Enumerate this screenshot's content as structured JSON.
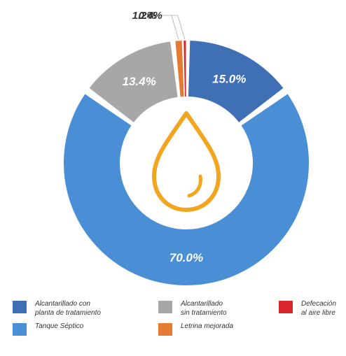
{
  "chart_data": {
    "type": "pie",
    "donut": true,
    "start_angle_deg": 0,
    "direction": "clockwise",
    "center_icon": "water-drop-icon",
    "slices": [
      {
        "name": "Alcantarillado con planta de tratamiento",
        "name_lines": [
          "Alcantarillado con",
          "planta de tratamiento"
        ],
        "value": 15.0,
        "label": "15.0%",
        "color": "#3f6fb5",
        "label_position": "inside"
      },
      {
        "name": "Tanque Séptico",
        "name_lines": [
          "Tanque Séptico"
        ],
        "value": 70.0,
        "label": "70.0%",
        "color": "#4a8fd6",
        "label_position": "inside"
      },
      {
        "name": "Alcantarillado sin tratamiento",
        "name_lines": [
          "Alcantarillado",
          "sin tratamiento"
        ],
        "value": 13.4,
        "label": "13.4%",
        "color": "#a7a7a7",
        "label_position": "inside"
      },
      {
        "name": "Letrina mejorada",
        "name_lines": [
          "Letrina mejorada"
        ],
        "value": 1.2,
        "label": "1.2%",
        "color": "#e57b32",
        "label_position": "outside"
      },
      {
        "name": "Defecación al aire libre",
        "name_lines": [
          "Defecación",
          "al aire libre"
        ],
        "value": 0.4,
        "label": "0.4%",
        "color": "#d9262c",
        "label_position": "outside"
      }
    ],
    "legend_placement": "bottom"
  }
}
